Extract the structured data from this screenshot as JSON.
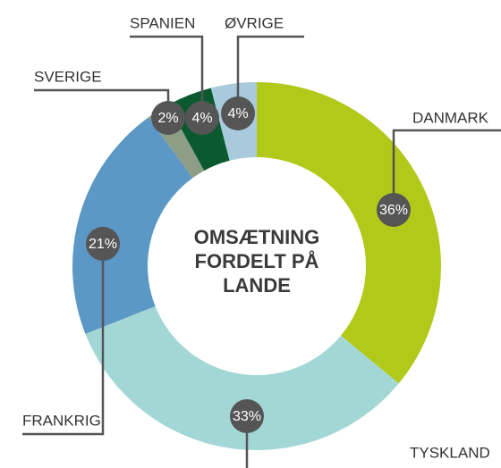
{
  "chart_data": {
    "type": "donut",
    "title": "OMSÆTNING FORDELT PÅ LANDE",
    "categories": [
      "DANMARK",
      "TYSKLAND",
      "FRANKRIG",
      "SVERIGE",
      "SPANIEN",
      "ØVRIGE"
    ],
    "values": [
      36,
      33,
      21,
      2,
      4,
      4
    ],
    "value_labels": [
      "36%",
      "33%",
      "21%",
      "2%",
      "4%",
      "4%"
    ],
    "colors": [
      "#b1c919",
      "#a3d7d6",
      "#5b98c5",
      "#8d9d86",
      "#0b5a2f",
      "#a9c9dd"
    ]
  }
}
